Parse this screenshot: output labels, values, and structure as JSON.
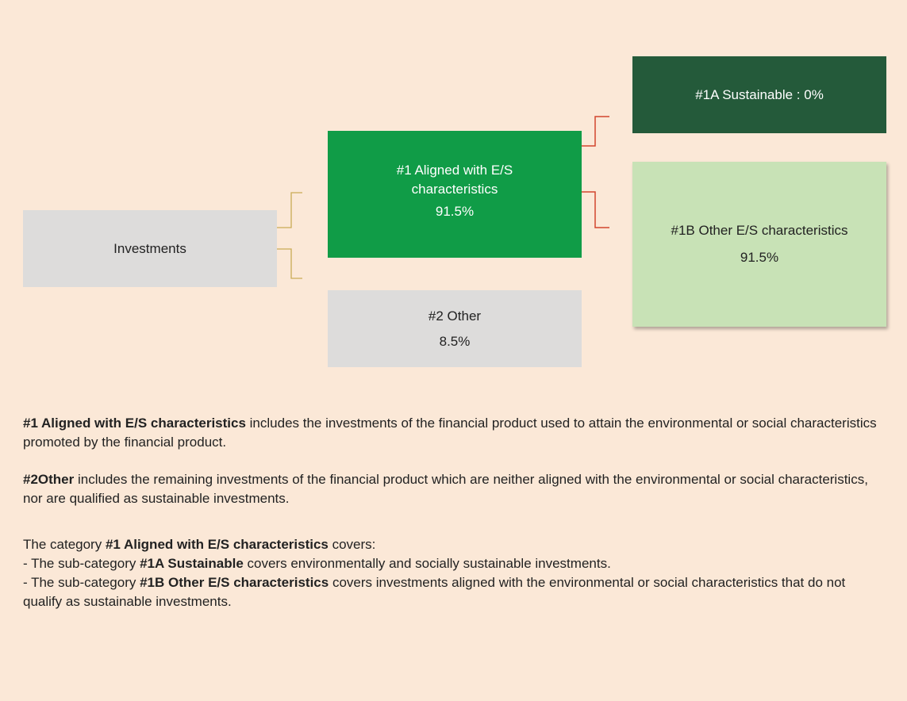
{
  "nodes": {
    "investments": {
      "label": "Investments"
    },
    "aligned": {
      "label": "#1 Aligned with E/S characteristics",
      "value": "91.5%"
    },
    "other": {
      "label": "#2 Other",
      "value": "8.5%"
    },
    "sustainable": {
      "label": "#1A Sustainable : 0%"
    },
    "other_es": {
      "label": "#1B Other E/S characteristics",
      "value": "91.5%"
    }
  },
  "paragraphs": [
    [
      {
        "text": "#1 Aligned with E/S characteristics",
        "bold": true
      },
      {
        "text": " includes the investments of the financial product used to attain the environmental or social characteristics promoted by the financial product.",
        "bold": false
      }
    ],
    [
      {
        "text": "#2Other",
        "bold": true
      },
      {
        "text": " includes the remaining investments of the financial product which are neither aligned with the environmental or social characteristics, nor are qualified as sustainable investments.",
        "bold": false
      }
    ],
    [
      {
        "text": "The category ",
        "bold": false
      },
      {
        "text": "#1 Aligned with E/S characteristics",
        "bold": true
      },
      {
        "text": " covers:",
        "bold": false
      }
    ],
    [
      {
        "text": "- The sub-category ",
        "bold": false
      },
      {
        "text": "#1A Sustainable",
        "bold": true
      },
      {
        "text": " covers environmentally and socially sustainable investments.",
        "bold": false
      }
    ],
    [
      {
        "text": "- The sub-category ",
        "bold": false
      },
      {
        "text": "#1B Other E/S characteristics",
        "bold": true
      },
      {
        "text": " covers investments aligned with the environmental or social characteristics that do not qualify as sustainable investments.",
        "bold": false
      }
    ]
  ]
}
